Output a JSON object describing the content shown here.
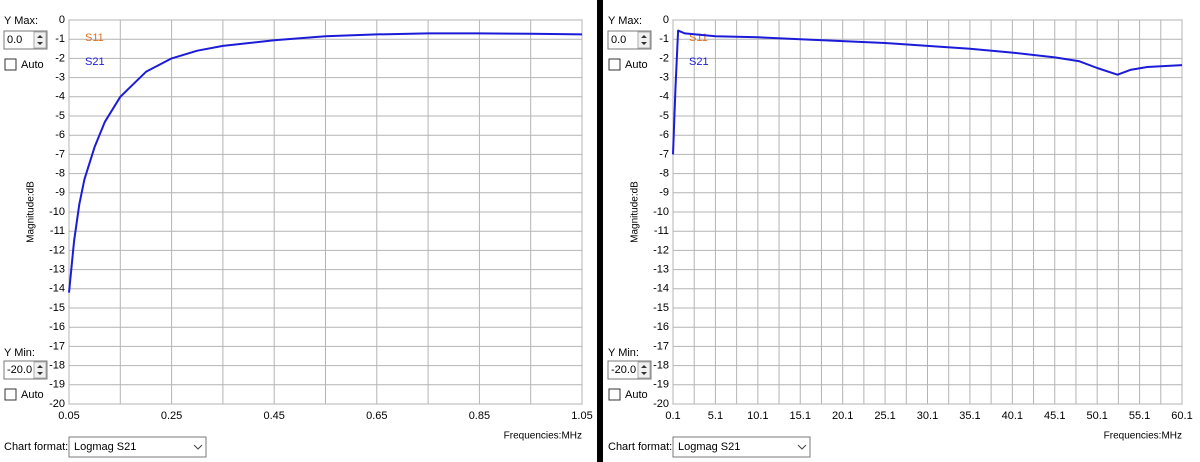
{
  "chart_data": [
    {
      "type": "line",
      "ylabel": "Magnitude:dB",
      "xlabel": "Frequencies:MHz",
      "grid": true,
      "x": [
        0.05,
        0.06,
        0.07,
        0.08,
        0.1,
        0.12,
        0.15,
        0.2,
        0.25,
        0.3,
        0.35,
        0.45,
        0.55,
        0.65,
        0.75,
        0.85,
        0.95,
        1.05
      ],
      "series": [
        {
          "name": "S11",
          "color": "#e07020",
          "values": [
            null,
            null,
            null,
            null,
            null,
            null,
            null,
            null,
            null,
            null,
            null,
            null,
            null,
            null,
            null,
            null,
            null,
            null
          ]
        },
        {
          "name": "S21",
          "color": "#1c1cd8",
          "values": [
            -14.2,
            -11.5,
            -9.6,
            -8.3,
            -6.6,
            -5.3,
            -4.0,
            -2.7,
            -2.0,
            -1.6,
            -1.35,
            -1.05,
            -0.85,
            -0.75,
            -0.7,
            -0.7,
            -0.72,
            -0.75
          ]
        }
      ],
      "xlim": [
        0.05,
        1.05
      ],
      "xticks": [
        0.05,
        0.25,
        0.45,
        0.65,
        0.85,
        1.05
      ],
      "xgrid": [
        0.15,
        0.35,
        0.55,
        0.75,
        0.95
      ],
      "ylim": [
        -20,
        0
      ],
      "yticks": [
        -20,
        -19,
        -18,
        -17,
        -16,
        -15,
        -14,
        -13,
        -12,
        -11,
        -10,
        -9,
        -8,
        -7,
        -6,
        -5,
        -4,
        -3,
        -2,
        -1,
        0
      ]
    },
    {
      "type": "line",
      "ylabel": "Magnitude:dB",
      "xlabel": "Frequencies:MHz",
      "grid": true,
      "x": [
        0.1,
        0.4,
        0.7,
        1.5,
        5.1,
        10.1,
        15.1,
        20.1,
        25.1,
        30.1,
        35.1,
        40.1,
        45.1,
        48.0,
        50.1,
        52.5,
        54.0,
        56.0,
        60.1
      ],
      "series": [
        {
          "name": "S11",
          "color": "#e07020",
          "values": [
            null,
            null,
            null,
            null,
            null,
            null,
            null,
            null,
            null,
            null,
            null,
            null,
            null,
            null,
            null,
            null,
            null,
            null,
            null
          ]
        },
        {
          "name": "S21",
          "color": "#1c1cd8",
          "values": [
            -7.0,
            -3.5,
            -0.55,
            -0.7,
            -0.85,
            -0.9,
            -1.0,
            -1.1,
            -1.2,
            -1.35,
            -1.5,
            -1.7,
            -1.95,
            -2.15,
            -2.5,
            -2.85,
            -2.6,
            -2.45,
            -2.35
          ]
        }
      ],
      "xlim": [
        0.1,
        60.1
      ],
      "xticks": [
        0.1,
        5.1,
        10.1,
        15.1,
        20.1,
        25.1,
        30.1,
        35.1,
        40.1,
        45.1,
        50.1,
        55.1,
        60.1
      ],
      "xgrid": [
        2.6,
        7.6,
        12.6,
        17.6,
        22.6,
        27.6,
        32.6,
        37.6,
        42.6,
        47.6,
        52.6,
        57.6
      ],
      "ylim": [
        -20,
        0
      ],
      "yticks": [
        -20,
        -19,
        -18,
        -17,
        -16,
        -15,
        -14,
        -13,
        -12,
        -11,
        -10,
        -9,
        -8,
        -7,
        -6,
        -5,
        -4,
        -3,
        -2,
        -1,
        0
      ]
    }
  ],
  "panels": [
    {
      "ymax_label": "Y Max:",
      "ymax": "0.0",
      "auto_top": "Auto",
      "ymin_label": "Y Min:",
      "ymin": "-20.0",
      "auto_bottom": "Auto",
      "format_label": "Chart format:",
      "format": "Logmag S21"
    },
    {
      "ymax_label": "Y Max:",
      "ymax": "0.0",
      "auto_top": "Auto",
      "ymin_label": "Y Min:",
      "ymin": "-20.0",
      "auto_bottom": "Auto",
      "format_label": "Chart format:",
      "format": "Logmag S21"
    }
  ]
}
